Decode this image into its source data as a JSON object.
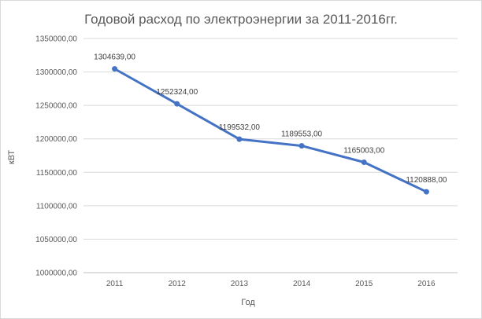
{
  "chart_data": {
    "type": "line",
    "title": "Годовой расход по электроэнергии за 2011-2016гг.",
    "xlabel": "Год",
    "ylabel": "кВТ",
    "categories": [
      "2011",
      "2012",
      "2013",
      "2014",
      "2015",
      "2016"
    ],
    "series": [
      {
        "values": [
          1304639,
          1252324,
          1199532,
          1189553,
          1165003,
          1120888
        ],
        "labels": [
          "1304639,00",
          "1252324,00",
          "1199532,00",
          "1189553,00",
          "1165003,00",
          "1120888,00"
        ],
        "color": "#4472c4"
      }
    ],
    "ylim": [
      1000000,
      1350000
    ],
    "yticks": [
      1000000,
      1050000,
      1100000,
      1150000,
      1200000,
      1250000,
      1300000,
      1350000
    ],
    "ytick_labels": [
      "1000000,00",
      "1050000,00",
      "1100000,00",
      "1150000,00",
      "1200000,00",
      "1250000,00",
      "1300000,00",
      "1350000,00"
    ],
    "grid": true,
    "legend": "none"
  }
}
